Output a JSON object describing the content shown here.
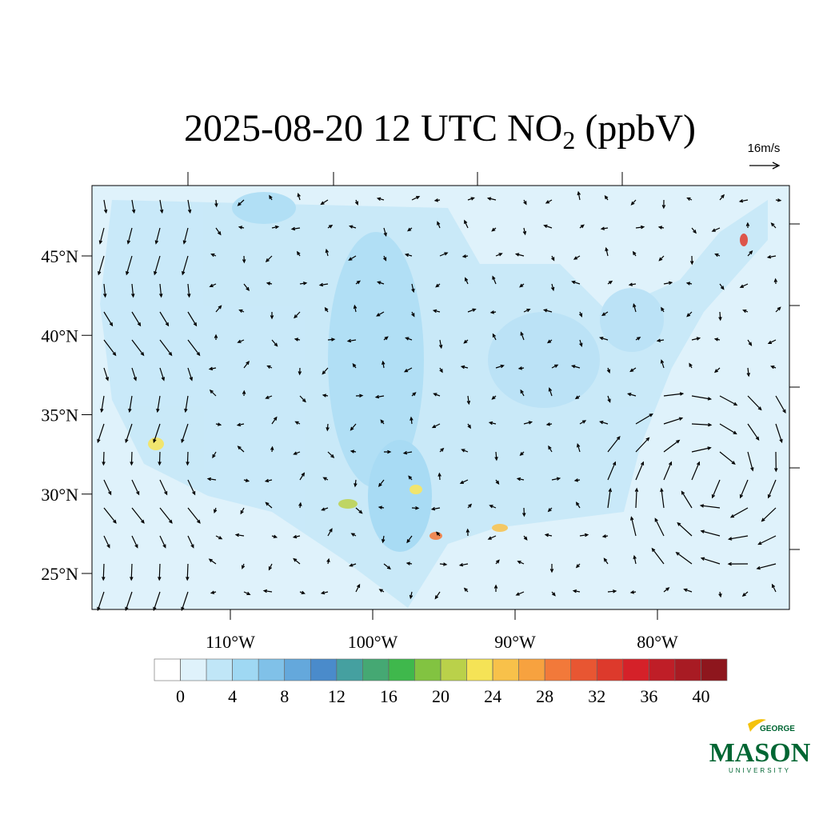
{
  "map": {
    "title": {
      "main": "2025-08-20 12 UTC NO",
      "sub": "2",
      "tail": " (ppbV)"
    },
    "wind_reference": "16m/s",
    "lat_ticks": [
      {
        "value": 25,
        "label": "25°N"
      },
      {
        "value": 30,
        "label": "30°N"
      },
      {
        "value": 35,
        "label": "35°N"
      },
      {
        "value": 40,
        "label": "40°N"
      },
      {
        "value": 45,
        "label": "45°N"
      }
    ],
    "lon_ticks": [
      {
        "value": -110,
        "label": "110°W"
      },
      {
        "value": -100,
        "label": "100°W"
      },
      {
        "value": -90,
        "label": "90°W"
      },
      {
        "value": -80,
        "label": "80°W"
      }
    ],
    "colorbar": {
      "lim": [
        -2,
        42
      ],
      "colors": [
        "#ffffff",
        "#dff2fb",
        "#c0e6f7",
        "#9fd8f3",
        "#80c1e8",
        "#64a8dc",
        "#4a8bcb",
        "#45a0a0",
        "#45a873",
        "#3fb84c",
        "#82c341",
        "#bad14a",
        "#f5e356",
        "#f8c14a",
        "#f7a23f",
        "#f2793a",
        "#e85632",
        "#dd3a2c",
        "#d52129",
        "#bf1e27",
        "#a81b23",
        "#8e161d"
      ],
      "ticks": [
        0,
        4,
        8,
        12,
        16,
        20,
        24,
        28,
        32,
        36,
        40
      ]
    },
    "logo": {
      "top": "GEORGE",
      "name": "MASON",
      "bottom": "UNIVERSITY"
    }
  }
}
